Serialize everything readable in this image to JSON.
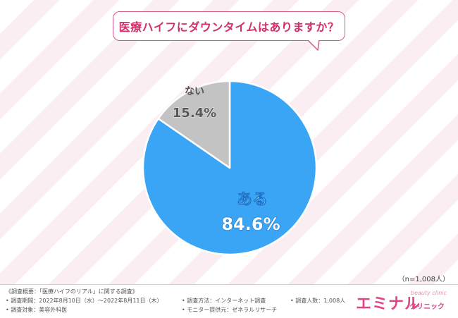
{
  "question": "医療ハイフにダウンタイムはありますか？",
  "chart_data": {
    "type": "pie",
    "categories": [
      "ある",
      "ない"
    ],
    "values": [
      84.6,
      15.4
    ],
    "labels": [
      "84.6%",
      "15.4%"
    ],
    "colors": [
      "#3aa5f5",
      "#c3c3c3"
    ]
  },
  "sample_size": "（n=1,008人）",
  "footer": {
    "overview": "《調査概要：「医療ハイフのリアル」に関する調査》",
    "period": "• 調査期間：2022年8月10日（水）〜2022年8月11日（木）",
    "target": "• 調査対象：美容外科医",
    "method": "• 調査方法：インターネット調査",
    "provider": "• モニター提供元：ゼネラルリサーチ",
    "count": "• 調査人数：1,008人"
  },
  "logo": {
    "main": "エミナル",
    "sub": "クリニック",
    "script": "beauty clinic"
  }
}
